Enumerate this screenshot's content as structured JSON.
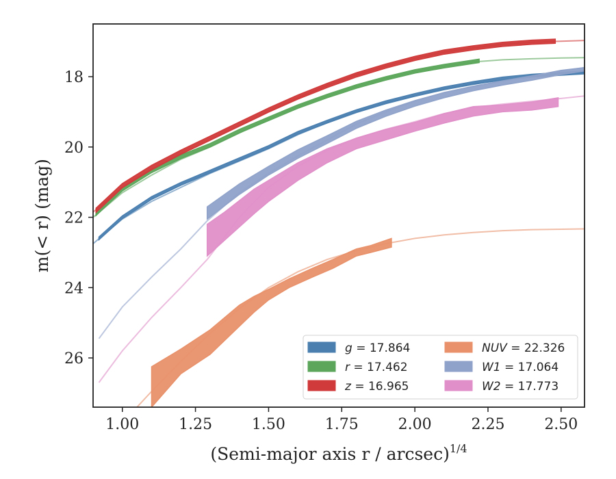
{
  "chart_data": {
    "type": "line",
    "title": "",
    "xlabel": "(Semi-major axis r / arcsec)",
    "xlabel_exponent": "1/4",
    "ylabel": "m(< r) (mag)",
    "xlim": [
      0.9,
      2.58
    ],
    "ylim": [
      27.4,
      16.5
    ],
    "y_inverted": true,
    "x_ticks": [
      1.0,
      1.25,
      1.5,
      1.75,
      2.0,
      2.25,
      2.5
    ],
    "x_tick_labels": [
      "1.00",
      "1.25",
      "1.50",
      "1.75",
      "2.00",
      "2.25",
      "2.50"
    ],
    "y_ticks": [
      18,
      20,
      22,
      24,
      26
    ],
    "y_tick_labels": [
      "18",
      "20",
      "22",
      "24",
      "26"
    ],
    "grid": false,
    "legend_position": "lower-right",
    "legend_columns": 2,
    "series": [
      {
        "name": "g = 17.864",
        "label_var": "g",
        "label_eq": " = 17.864",
        "color": "#4a7fb0",
        "model": [
          [
            0.9,
            22.75
          ],
          [
            1.0,
            22.05
          ],
          [
            1.1,
            21.55
          ],
          [
            1.2,
            21.15
          ],
          [
            1.3,
            20.75
          ],
          [
            1.4,
            20.4
          ],
          [
            1.5,
            20.05
          ],
          [
            1.6,
            19.65
          ],
          [
            1.7,
            19.3
          ],
          [
            1.8,
            19.0
          ],
          [
            1.9,
            18.75
          ],
          [
            2.0,
            18.55
          ],
          [
            2.1,
            18.35
          ],
          [
            2.2,
            18.2
          ],
          [
            2.3,
            18.1
          ],
          [
            2.4,
            18.0
          ],
          [
            2.5,
            17.92
          ],
          [
            2.58,
            17.88
          ]
        ],
        "data": [
          [
            0.92,
            22.6
          ],
          [
            1.0,
            22.0
          ],
          [
            1.1,
            21.45
          ],
          [
            1.2,
            21.05
          ],
          [
            1.3,
            20.7
          ],
          [
            1.4,
            20.35
          ],
          [
            1.5,
            20.0
          ],
          [
            1.6,
            19.6
          ],
          [
            1.7,
            19.28
          ],
          [
            1.8,
            18.98
          ],
          [
            1.9,
            18.73
          ],
          [
            2.0,
            18.52
          ],
          [
            2.1,
            18.33
          ],
          [
            2.2,
            18.18
          ],
          [
            2.3,
            18.05
          ],
          [
            2.4,
            17.97
          ],
          [
            2.5,
            17.92
          ],
          [
            2.58,
            17.88
          ]
        ],
        "band_halfwidth": 0.04
      },
      {
        "name": "r = 17.462",
        "label_var": "r",
        "label_eq": " = 17.462",
        "color": "#5ba65b",
        "model": [
          [
            0.9,
            22.0
          ],
          [
            1.0,
            21.3
          ],
          [
            1.1,
            20.8
          ],
          [
            1.2,
            20.35
          ],
          [
            1.3,
            20.0
          ],
          [
            1.4,
            19.6
          ],
          [
            1.5,
            19.2
          ],
          [
            1.6,
            18.85
          ],
          [
            1.7,
            18.55
          ],
          [
            1.8,
            18.28
          ],
          [
            1.9,
            18.05
          ],
          [
            2.0,
            17.85
          ],
          [
            2.1,
            17.7
          ],
          [
            2.2,
            17.58
          ],
          [
            2.3,
            17.52
          ],
          [
            2.4,
            17.49
          ],
          [
            2.5,
            17.47
          ],
          [
            2.58,
            17.46
          ]
        ],
        "data": [
          [
            0.91,
            21.9
          ],
          [
            1.0,
            21.2
          ],
          [
            1.1,
            20.68
          ],
          [
            1.2,
            20.28
          ],
          [
            1.3,
            19.95
          ],
          [
            1.4,
            19.55
          ],
          [
            1.5,
            19.2
          ],
          [
            1.6,
            18.85
          ],
          [
            1.7,
            18.55
          ],
          [
            1.8,
            18.28
          ],
          [
            1.9,
            18.05
          ],
          [
            2.0,
            17.85
          ],
          [
            2.1,
            17.7
          ],
          [
            2.22,
            17.55
          ]
        ],
        "band_halfwidth": 0.05
      },
      {
        "name": "z = 16.965",
        "label_var": "z",
        "label_eq": " = 16.965",
        "color": "#d03a3a",
        "model": [
          [
            0.9,
            21.85
          ],
          [
            1.0,
            21.15
          ],
          [
            1.1,
            20.65
          ],
          [
            1.2,
            20.2
          ],
          [
            1.3,
            19.8
          ],
          [
            1.4,
            19.4
          ],
          [
            1.5,
            19.0
          ],
          [
            1.6,
            18.6
          ],
          [
            1.7,
            18.25
          ],
          [
            1.8,
            17.95
          ],
          [
            1.9,
            17.7
          ],
          [
            2.0,
            17.48
          ],
          [
            2.1,
            17.3
          ],
          [
            2.2,
            17.18
          ],
          [
            2.3,
            17.08
          ],
          [
            2.4,
            17.02
          ],
          [
            2.5,
            16.99
          ],
          [
            2.58,
            16.97
          ]
        ],
        "data": [
          [
            0.91,
            21.8
          ],
          [
            1.0,
            21.1
          ],
          [
            1.1,
            20.58
          ],
          [
            1.2,
            20.15
          ],
          [
            1.3,
            19.75
          ],
          [
            1.4,
            19.35
          ],
          [
            1.5,
            18.95
          ],
          [
            1.6,
            18.58
          ],
          [
            1.7,
            18.25
          ],
          [
            1.8,
            17.95
          ],
          [
            1.9,
            17.7
          ],
          [
            2.0,
            17.48
          ],
          [
            2.1,
            17.3
          ],
          [
            2.2,
            17.18
          ],
          [
            2.3,
            17.08
          ],
          [
            2.4,
            17.02
          ],
          [
            2.48,
            16.99
          ]
        ],
        "band_halfwidth": 0.06
      },
      {
        "name": "NUV = 22.326",
        "label_var": "NUV",
        "label_eq": " = 22.326",
        "color": "#e8916a",
        "model": [
          [
            1.05,
            27.4
          ],
          [
            1.1,
            26.95
          ],
          [
            1.2,
            26.1
          ],
          [
            1.3,
            25.3
          ],
          [
            1.4,
            24.6
          ],
          [
            1.5,
            24.0
          ],
          [
            1.6,
            23.55
          ],
          [
            1.7,
            23.2
          ],
          [
            1.8,
            22.95
          ],
          [
            1.9,
            22.75
          ],
          [
            2.0,
            22.6
          ],
          [
            2.1,
            22.5
          ],
          [
            2.2,
            22.43
          ],
          [
            2.3,
            22.38
          ],
          [
            2.4,
            22.35
          ],
          [
            2.5,
            22.34
          ],
          [
            2.58,
            22.33
          ]
        ],
        "band": [
          [
            1.1,
            26.25,
            27.4
          ],
          [
            1.2,
            25.75,
            26.45
          ],
          [
            1.3,
            25.2,
            25.9
          ],
          [
            1.4,
            24.5,
            25.1
          ],
          [
            1.45,
            24.25,
            24.7
          ],
          [
            1.5,
            24.05,
            24.35
          ],
          [
            1.57,
            23.75,
            24.0
          ],
          [
            1.65,
            23.45,
            23.7
          ],
          [
            1.72,
            23.2,
            23.45
          ],
          [
            1.8,
            22.9,
            23.1
          ],
          [
            1.85,
            22.8,
            23.0
          ],
          [
            1.92,
            22.6,
            22.85
          ]
        ]
      },
      {
        "name": "W1 = 17.064",
        "label_var": "W1",
        "label_eq": " = 17.064",
        "color": "#8fa2c9",
        "model": [
          [
            0.92,
            25.45
          ],
          [
            1.0,
            24.55
          ],
          [
            1.1,
            23.7
          ],
          [
            1.2,
            22.9
          ],
          [
            1.29,
            22.1
          ],
          [
            1.4,
            21.3
          ],
          [
            1.5,
            20.75
          ],
          [
            1.6,
            20.25
          ],
          [
            1.7,
            19.8
          ],
          [
            1.8,
            19.35
          ],
          [
            1.9,
            19.0
          ],
          [
            2.0,
            18.7
          ],
          [
            2.1,
            18.45
          ],
          [
            2.2,
            18.28
          ],
          [
            2.3,
            18.12
          ],
          [
            2.4,
            17.98
          ],
          [
            2.5,
            17.84
          ],
          [
            2.58,
            17.74
          ]
        ],
        "band": [
          [
            1.29,
            21.7,
            22.05
          ],
          [
            1.4,
            21.05,
            21.35
          ],
          [
            1.5,
            20.55,
            20.8
          ],
          [
            1.6,
            20.08,
            20.32
          ],
          [
            1.7,
            19.68,
            19.9
          ],
          [
            1.8,
            19.27,
            19.47
          ],
          [
            1.9,
            18.95,
            19.13
          ],
          [
            2.0,
            18.68,
            18.84
          ],
          [
            2.1,
            18.45,
            18.6
          ],
          [
            2.2,
            18.27,
            18.4
          ],
          [
            2.3,
            18.12,
            18.24
          ],
          [
            2.4,
            17.98,
            18.1
          ],
          [
            2.5,
            17.82,
            17.94
          ],
          [
            2.58,
            17.74,
            17.84
          ]
        ]
      },
      {
        "name": "W2 = 17.773",
        "label_var": "W2",
        "label_eq": " = 17.773",
        "color": "#e08fc8",
        "model": [
          [
            0.92,
            26.7
          ],
          [
            1.0,
            25.8
          ],
          [
            1.1,
            24.85
          ],
          [
            1.2,
            24.0
          ],
          [
            1.29,
            23.2
          ],
          [
            1.4,
            22.0
          ],
          [
            1.5,
            21.15
          ],
          [
            1.6,
            20.55
          ],
          [
            1.7,
            20.1
          ],
          [
            1.8,
            19.75
          ],
          [
            1.9,
            19.5
          ],
          [
            2.0,
            19.28
          ],
          [
            2.1,
            19.05
          ],
          [
            2.2,
            18.88
          ],
          [
            2.3,
            18.78
          ],
          [
            2.4,
            18.7
          ],
          [
            2.5,
            18.62
          ],
          [
            2.58,
            18.55
          ]
        ],
        "band": [
          [
            1.29,
            22.2,
            23.1
          ],
          [
            1.35,
            21.85,
            22.65
          ],
          [
            1.45,
            21.2,
            21.9
          ],
          [
            1.5,
            20.95,
            21.55
          ],
          [
            1.6,
            20.45,
            20.95
          ],
          [
            1.7,
            20.05,
            20.45
          ],
          [
            1.8,
            19.75,
            20.05
          ],
          [
            1.9,
            19.5,
            19.8
          ],
          [
            2.0,
            19.3,
            19.55
          ],
          [
            2.1,
            19.05,
            19.32
          ],
          [
            2.2,
            18.85,
            19.12
          ],
          [
            2.3,
            18.8,
            19.0
          ],
          [
            2.4,
            18.72,
            18.95
          ],
          [
            2.49,
            18.6,
            18.85
          ]
        ]
      }
    ]
  }
}
